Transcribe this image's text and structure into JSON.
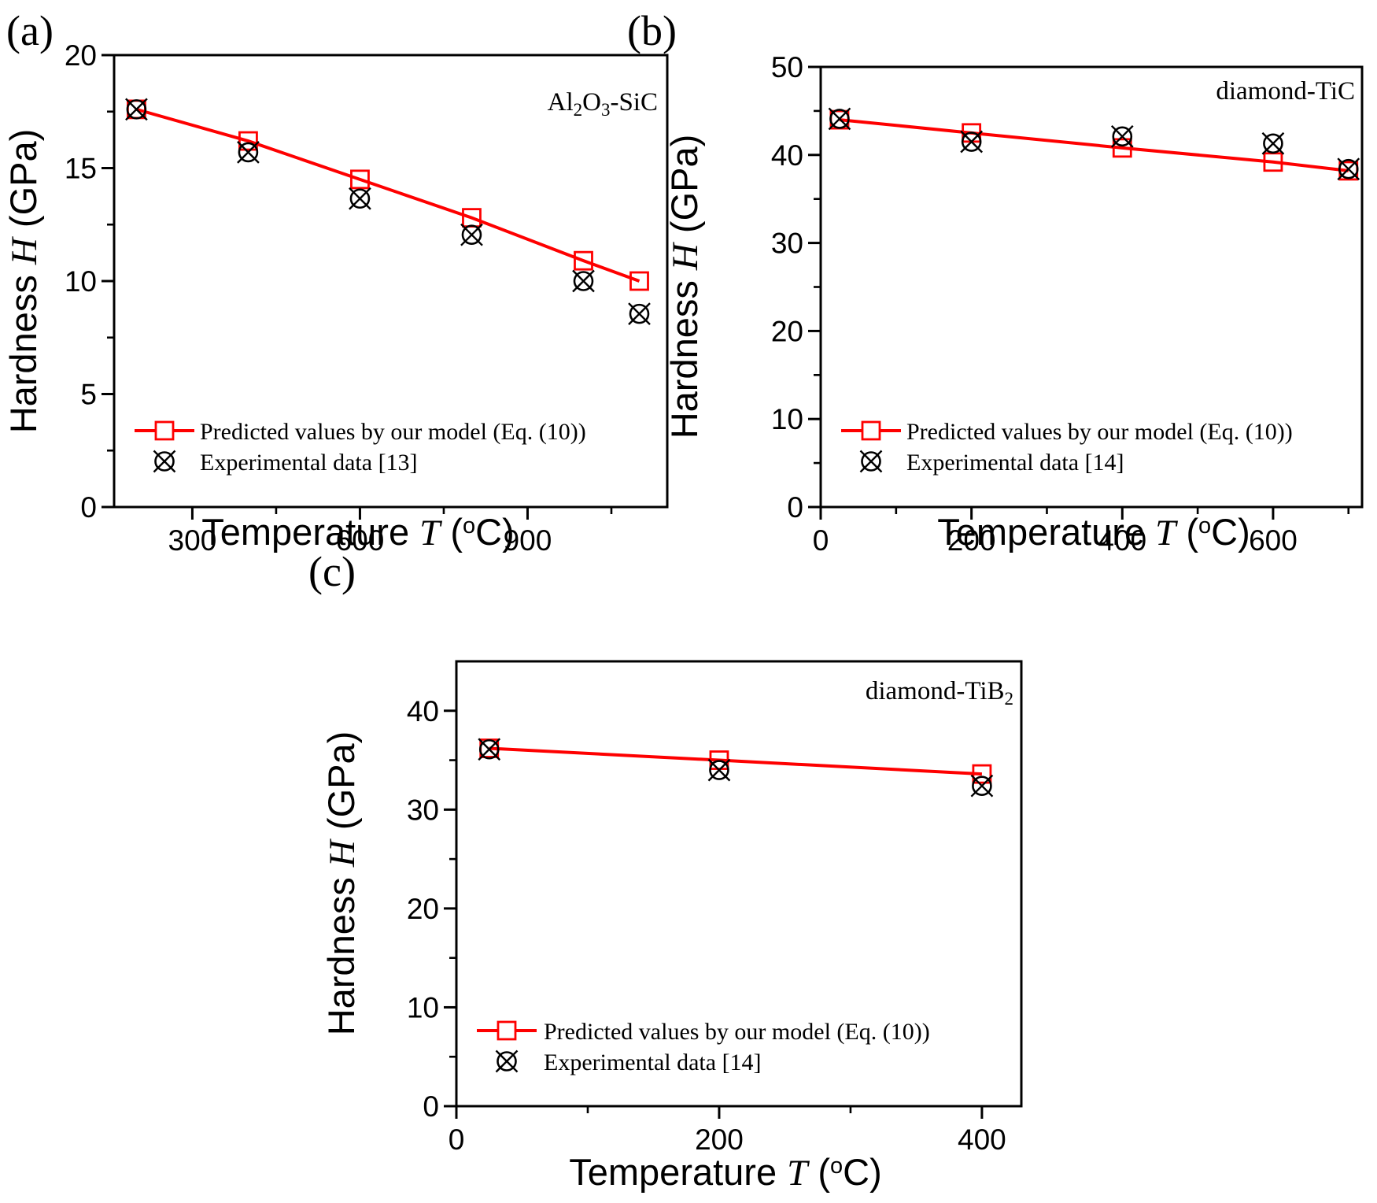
{
  "figure": {
    "background": "#ffffff",
    "accent_red": "#fe0000",
    "ink": "#000000",
    "xlabel": "Temperature T (oC)",
    "ylabel": "Hardness H (GPa)",
    "xlabel_segments": [
      {
        "t": "Temperature "
      },
      {
        "t": "T",
        "italic": true,
        "serif": true
      },
      {
        "t": " ("
      },
      {
        "t": "o",
        "sup": true
      },
      {
        "t": "C)"
      }
    ],
    "ylabel_segments": [
      {
        "t": "Hardness "
      },
      {
        "t": "H",
        "italic": true,
        "serif": true
      },
      {
        "t": " (GPa)"
      }
    ]
  },
  "chart_data": [
    {
      "type": "line",
      "panel_label": "(a)",
      "annotation": "Al2O3-SiC",
      "annotation_segments": [
        {
          "t": "Al"
        },
        {
          "t": "2",
          "sub": true
        },
        {
          "t": "O"
        },
        {
          "t": "3",
          "sub": true
        },
        {
          "t": "-SiC"
        }
      ],
      "xlabel": "Temperature T (oC)",
      "ylabel": "Hardness H (GPa)",
      "x": [
        200,
        400,
        600,
        800,
        1000,
        1100
      ],
      "series": [
        {
          "name": "Predicted values by our model (Eq. (10))",
          "marker": "open-square",
          "color": "#fe0000",
          "line": true,
          "values": [
            17.6,
            16.2,
            14.5,
            12.8,
            10.9,
            10.0
          ]
        },
        {
          "name": "Experimental data [13]",
          "marker": "circle-x",
          "color": "#000000",
          "line": false,
          "values": [
            17.6,
            15.7,
            13.65,
            12.05,
            10.0,
            8.55
          ]
        }
      ],
      "xlim": [
        160,
        1150
      ],
      "ylim": [
        0,
        20
      ],
      "xticks": [
        300,
        600,
        900
      ],
      "xminors": [
        450,
        750,
        1050
      ],
      "yticks": [
        0,
        5,
        10,
        15,
        20
      ],
      "yminors": [
        2.5,
        7.5,
        12.5,
        17.5
      ],
      "grid": false,
      "legend_position": "bottom-left",
      "legend": [
        "Predicted values by our model (Eq. (10))",
        "Experimental data [13]"
      ]
    },
    {
      "type": "line",
      "panel_label": "(b)",
      "annotation": "diamond-TiC",
      "annotation_segments": [
        {
          "t": "diamond-TiC"
        }
      ],
      "xlabel": "Temperature T (oC)",
      "ylabel": "Hardness H (GPa)",
      "x": [
        25,
        200,
        400,
        600,
        700
      ],
      "series": [
        {
          "name": "Predicted values by our model (Eq. (10))",
          "marker": "open-square",
          "color": "#fe0000",
          "line": true,
          "values": [
            44.0,
            42.5,
            40.8,
            39.2,
            38.2
          ]
        },
        {
          "name": "Experimental data [14]",
          "marker": "circle-x",
          "color": "#000000",
          "line": false,
          "values": [
            44.1,
            41.5,
            42.1,
            41.3,
            38.4
          ]
        }
      ],
      "xlim": [
        0,
        718
      ],
      "ylim": [
        0,
        50
      ],
      "xticks": [
        0,
        200,
        400,
        600
      ],
      "xminors": [
        100,
        300,
        500,
        700
      ],
      "yticks": [
        0,
        10,
        20,
        30,
        40,
        50
      ],
      "yminors": [
        5,
        15,
        25,
        35,
        45
      ],
      "grid": false,
      "legend_position": "bottom-left",
      "legend": [
        "Predicted values by our model (Eq. (10))",
        "Experimental data [14]"
      ]
    },
    {
      "type": "line",
      "panel_label": "(c)",
      "annotation": "diamond-TiB2",
      "annotation_segments": [
        {
          "t": "diamond-TiB"
        },
        {
          "t": "2",
          "sub": true
        }
      ],
      "xlabel": "Temperature T (oC)",
      "ylabel": "Hardness H (GPa)",
      "x": [
        25,
        200,
        400
      ],
      "series": [
        {
          "name": "Predicted values by our model (Eq. (10))",
          "marker": "open-square",
          "color": "#fe0000",
          "line": true,
          "values": [
            36.2,
            35.0,
            33.6
          ]
        },
        {
          "name": "Experimental data [14]",
          "marker": "circle-x",
          "color": "#000000",
          "line": false,
          "values": [
            36.1,
            34.0,
            32.4
          ]
        }
      ],
      "xlim": [
        0,
        430
      ],
      "ylim": [
        0,
        45
      ],
      "xticks": [
        0,
        200,
        400
      ],
      "xminors": [
        100,
        300
      ],
      "yticks": [
        0,
        10,
        20,
        30,
        40
      ],
      "yminors": [
        5,
        15,
        25,
        35
      ],
      "grid": false,
      "legend_position": "bottom-left",
      "legend": [
        "Predicted values by our model (Eq. (10))",
        "Experimental data [14]"
      ]
    }
  ]
}
